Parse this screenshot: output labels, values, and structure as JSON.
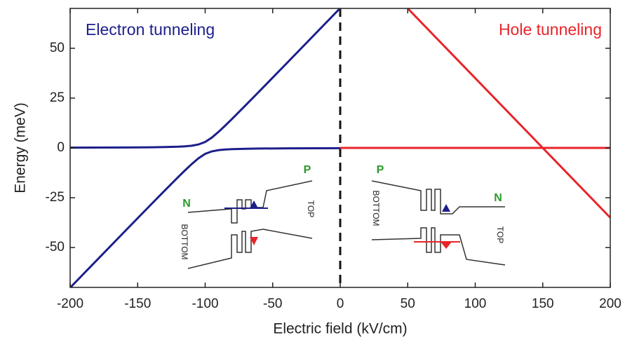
{
  "chart_data": {
    "type": "line",
    "xlabel": "Electric field (kV/cm)",
    "ylabel": "Energy (meV)",
    "xlim": [
      -200,
      200
    ],
    "ylim": [
      -70,
      70
    ],
    "xticks": [
      -200,
      -150,
      -100,
      -50,
      0,
      50,
      100,
      150,
      200
    ],
    "yticks": [
      -50,
      -25,
      0,
      25,
      50
    ],
    "vline": 0,
    "series": [
      {
        "name": "Electron tunneling",
        "color": "#1c1f8a",
        "legend": "upper-left",
        "lines": [
          {
            "x": [
              -200,
              -160,
              -140,
              -130,
              -120,
              -115,
              -110,
              -105,
              -100,
              -95,
              -90,
              -85,
              -80,
              -70,
              -60,
              -40,
              0
            ],
            "values": [
              0.13,
              0.21,
              0.32,
              0.42,
              0.62,
              0.8,
              1.11,
              1.72,
              3,
              5.22,
              8.11,
              11.3,
              14.62,
              21.42,
              28.32,
              42.21,
              70.13
            ]
          },
          {
            "x": [
              -200,
              -160,
              -140,
              -130,
              -120,
              -115,
              -110,
              -105,
              -100,
              -95,
              -90,
              -85,
              -80,
              -70,
              -60,
              -40,
              0
            ],
            "values": [
              -70.13,
              -42.21,
              -28.32,
              -21.42,
              -14.62,
              -11.3,
              -8.11,
              -5.22,
              -3,
              -1.72,
              -1.11,
              -0.8,
              -0.62,
              -0.42,
              -0.32,
              -0.21,
              -0.13
            ]
          }
        ]
      },
      {
        "name": "Hole tunneling",
        "color": "#e8242a",
        "legend": "upper-right",
        "lines": [
          {
            "x": [
              0,
              200
            ],
            "values": [
              0,
              0
            ]
          },
          {
            "x": [
              50,
              200
            ],
            "values": [
              70,
              -35
            ]
          }
        ]
      }
    ],
    "insets": [
      {
        "left": "N",
        "right": "P",
        "bottom": "BOTTOM",
        "top": "TOP"
      },
      {
        "left": "P",
        "right": "N",
        "bottom": "BOTTOM",
        "top": "TOP"
      }
    ]
  }
}
